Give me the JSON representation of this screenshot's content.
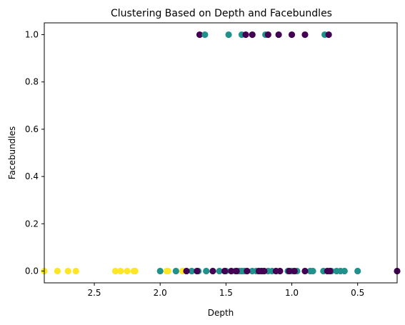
{
  "chart_data": {
    "type": "scatter",
    "title": "Clustering Based on Depth and Facebundles",
    "xlabel": "Depth",
    "ylabel": "Facebundles",
    "xlim": [
      2.88,
      0.2
    ],
    "ylim": [
      -0.05,
      1.05
    ],
    "x_inverted": true,
    "grid": false,
    "xticks": [
      "2.5",
      "2.0",
      "1.5",
      "1.0",
      "0.5"
    ],
    "yticks": [
      "0.0",
      "0.2",
      "0.4",
      "0.6",
      "0.8",
      "1.0"
    ],
    "cluster_colors": {
      "0": "#440154",
      "1": "#21918c",
      "2": "#fde725"
    },
    "points": [
      {
        "x": 1.7,
        "y": 1,
        "c": 0
      },
      {
        "x": 1.66,
        "y": 1,
        "c": 1
      },
      {
        "x": 1.48,
        "y": 1,
        "c": 1
      },
      {
        "x": 1.38,
        "y": 1,
        "c": 1
      },
      {
        "x": 1.35,
        "y": 1,
        "c": 0
      },
      {
        "x": 1.3,
        "y": 1,
        "c": 0
      },
      {
        "x": 1.2,
        "y": 1,
        "c": 1
      },
      {
        "x": 1.18,
        "y": 1,
        "c": 0
      },
      {
        "x": 1.1,
        "y": 1,
        "c": 0
      },
      {
        "x": 1.0,
        "y": 1,
        "c": 0
      },
      {
        "x": 0.9,
        "y": 1,
        "c": 0
      },
      {
        "x": 0.75,
        "y": 1,
        "c": 1
      },
      {
        "x": 0.72,
        "y": 1,
        "c": 0
      },
      {
        "x": 2.88,
        "y": 0,
        "c": 2
      },
      {
        "x": 2.78,
        "y": 0,
        "c": 2
      },
      {
        "x": 2.7,
        "y": 0,
        "c": 2
      },
      {
        "x": 2.64,
        "y": 0,
        "c": 2
      },
      {
        "x": 2.34,
        "y": 0,
        "c": 2
      },
      {
        "x": 2.3,
        "y": 0,
        "c": 2
      },
      {
        "x": 2.25,
        "y": 0,
        "c": 2
      },
      {
        "x": 2.2,
        "y": 0,
        "c": 2
      },
      {
        "x": 2.19,
        "y": 0,
        "c": 2
      },
      {
        "x": 1.95,
        "y": 0,
        "c": 2
      },
      {
        "x": 1.94,
        "y": 0,
        "c": 2
      },
      {
        "x": 1.83,
        "y": 0,
        "c": 2
      },
      {
        "x": 1.8,
        "y": 0,
        "c": 2
      },
      {
        "x": 2.0,
        "y": 0,
        "c": 1
      },
      {
        "x": 1.88,
        "y": 0,
        "c": 1
      },
      {
        "x": 1.76,
        "y": 0,
        "c": 1
      },
      {
        "x": 1.71,
        "y": 0,
        "c": 1
      },
      {
        "x": 1.65,
        "y": 0,
        "c": 1
      },
      {
        "x": 1.55,
        "y": 0,
        "c": 1
      },
      {
        "x": 1.5,
        "y": 0,
        "c": 1
      },
      {
        "x": 1.43,
        "y": 0,
        "c": 1
      },
      {
        "x": 1.4,
        "y": 0,
        "c": 1
      },
      {
        "x": 1.38,
        "y": 0,
        "c": 1
      },
      {
        "x": 1.36,
        "y": 0,
        "c": 1
      },
      {
        "x": 1.3,
        "y": 0,
        "c": 1
      },
      {
        "x": 1.27,
        "y": 0,
        "c": 1
      },
      {
        "x": 1.18,
        "y": 0,
        "c": 1
      },
      {
        "x": 1.15,
        "y": 0,
        "c": 1
      },
      {
        "x": 1.03,
        "y": 0,
        "c": 1
      },
      {
        "x": 1.0,
        "y": 0,
        "c": 1
      },
      {
        "x": 0.96,
        "y": 0,
        "c": 1
      },
      {
        "x": 0.86,
        "y": 0,
        "c": 1
      },
      {
        "x": 0.84,
        "y": 0,
        "c": 1
      },
      {
        "x": 0.76,
        "y": 0,
        "c": 1
      },
      {
        "x": 0.7,
        "y": 0,
        "c": 1
      },
      {
        "x": 0.66,
        "y": 0,
        "c": 1
      },
      {
        "x": 0.63,
        "y": 0,
        "c": 1
      },
      {
        "x": 0.6,
        "y": 0,
        "c": 1
      },
      {
        "x": 0.5,
        "y": 0,
        "c": 1
      },
      {
        "x": 1.8,
        "y": 0,
        "c": 0
      },
      {
        "x": 1.72,
        "y": 0,
        "c": 0
      },
      {
        "x": 1.6,
        "y": 0,
        "c": 0
      },
      {
        "x": 1.51,
        "y": 0,
        "c": 0
      },
      {
        "x": 1.46,
        "y": 0,
        "c": 0
      },
      {
        "x": 1.42,
        "y": 0,
        "c": 0
      },
      {
        "x": 1.34,
        "y": 0,
        "c": 0
      },
      {
        "x": 1.25,
        "y": 0,
        "c": 0
      },
      {
        "x": 1.23,
        "y": 0,
        "c": 0
      },
      {
        "x": 1.21,
        "y": 0,
        "c": 0
      },
      {
        "x": 1.12,
        "y": 0,
        "c": 0
      },
      {
        "x": 1.09,
        "y": 0,
        "c": 0
      },
      {
        "x": 1.02,
        "y": 0,
        "c": 0
      },
      {
        "x": 0.98,
        "y": 0,
        "c": 0
      },
      {
        "x": 0.9,
        "y": 0,
        "c": 0
      },
      {
        "x": 0.73,
        "y": 0,
        "c": 0
      },
      {
        "x": 0.71,
        "y": 0,
        "c": 0
      },
      {
        "x": 0.2,
        "y": 0,
        "c": 0
      }
    ]
  }
}
